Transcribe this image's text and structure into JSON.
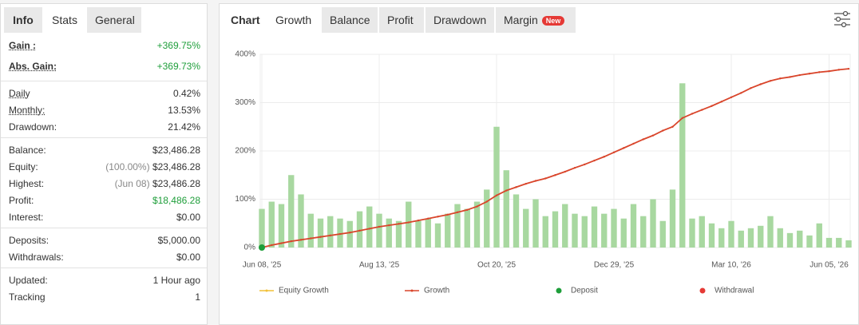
{
  "stats_panel": {
    "tabs": [
      {
        "label": "Info",
        "active": false
      },
      {
        "label": "Stats",
        "active": true
      },
      {
        "label": "General",
        "active": false
      }
    ],
    "groups": [
      [
        {
          "label": "Gain :",
          "value": "+369.75%",
          "highlight": true,
          "underline": true
        },
        {
          "label": "Abs. Gain:",
          "value": "+369.73%",
          "highlight": true,
          "underline": true
        }
      ],
      [
        {
          "label": "Daily",
          "value": "0.42%",
          "underline": true
        },
        {
          "label": "Monthly:",
          "value": "13.53%",
          "underline": true
        },
        {
          "label": "Drawdown:",
          "value": "21.42%"
        }
      ],
      [
        {
          "label": "Balance:",
          "value": "$23,486.28"
        },
        {
          "label": "Equity:",
          "note": "(100.00%)",
          "value": "$23,486.28"
        },
        {
          "label": "Highest:",
          "note": "(Jun 08)",
          "value": "$23,486.28"
        },
        {
          "label": "Profit:",
          "value": "$18,486.28",
          "highlight": true
        },
        {
          "label": "Interest:",
          "value": "$0.00"
        }
      ],
      [
        {
          "label": "Deposits:",
          "value": "$5,000.00"
        },
        {
          "label": "Withdrawals:",
          "value": "$0.00"
        }
      ],
      [
        {
          "label": "Updated:",
          "value": "1 Hour ago"
        },
        {
          "label": "Tracking",
          "value": "1"
        }
      ]
    ]
  },
  "chart_tabs": {
    "heading": "Chart",
    "tabs": [
      {
        "label": "Growth",
        "active": true
      },
      {
        "label": "Balance"
      },
      {
        "label": "Profit"
      },
      {
        "label": "Drawdown"
      },
      {
        "label": "Margin",
        "badge": "New"
      }
    ]
  },
  "chart_data": {
    "type": "bar-line",
    "categories": [
      "Jun 08, '25",
      null,
      null,
      null,
      null,
      null,
      null,
      null,
      null,
      null,
      null,
      null,
      "Aug 13, '25",
      null,
      null,
      null,
      null,
      null,
      null,
      null,
      null,
      null,
      null,
      null,
      "Oct 20, '25",
      null,
      null,
      null,
      null,
      null,
      null,
      null,
      null,
      null,
      null,
      null,
      "Dec 29, '25",
      null,
      null,
      null,
      null,
      null,
      null,
      null,
      null,
      null,
      null,
      null,
      "Mar 10, '26",
      null,
      null,
      null,
      null,
      null,
      null,
      null,
      null,
      null,
      "Jun 05, '26",
      null,
      null
    ],
    "series": [
      {
        "kind": "line",
        "color": "#d9452b",
        "values": [
          0,
          5,
          9,
          13,
          16,
          19,
          22,
          25,
          28,
          31,
          35,
          39,
          43,
          46,
          49,
          52,
          56,
          60,
          64,
          68,
          73,
          78,
          85,
          95,
          108,
          118,
          125,
          132,
          138,
          143,
          150,
          157,
          165,
          172,
          180,
          188,
          197,
          206,
          215,
          224,
          232,
          242,
          250,
          268,
          277,
          285,
          293,
          302,
          311,
          320,
          330,
          338,
          345,
          350,
          353,
          357,
          360,
          363,
          365,
          368,
          370
        ]
      },
      {
        "kind": "bar",
        "color": "#a8d8a0",
        "values": [
          80,
          95,
          90,
          150,
          110,
          70,
          60,
          65,
          60,
          55,
          75,
          85,
          70,
          60,
          55,
          95,
          55,
          60,
          50,
          70,
          90,
          80,
          95,
          120,
          250,
          160,
          110,
          80,
          100,
          65,
          75,
          90,
          70,
          65,
          85,
          70,
          80,
          60,
          90,
          65,
          100,
          55,
          120,
          340,
          60,
          65,
          50,
          40,
          55,
          35,
          40,
          45,
          65,
          40,
          30,
          35,
          25,
          50,
          20,
          20,
          15
        ]
      }
    ],
    "deposit_color": "#1e9e3a",
    "ylim": [
      0,
      400
    ],
    "yticks": [
      {
        "value": 0,
        "label": "0%"
      },
      {
        "value": 100,
        "label": "100%"
      },
      {
        "value": 200,
        "label": "200%"
      },
      {
        "value": 300,
        "label": "300%"
      },
      {
        "value": 400,
        "label": "400%"
      }
    ],
    "grid": true,
    "legend": [
      {
        "name": "Equity Growth",
        "color": "#f2c037",
        "marker": "line"
      },
      {
        "name": "Growth",
        "color": "#d9452b",
        "marker": "line"
      },
      {
        "name": "Deposit",
        "color": "#1e9e3a",
        "marker": "dot"
      },
      {
        "name": "Withdrawal",
        "color": "#e53935",
        "marker": "dot"
      }
    ]
  }
}
